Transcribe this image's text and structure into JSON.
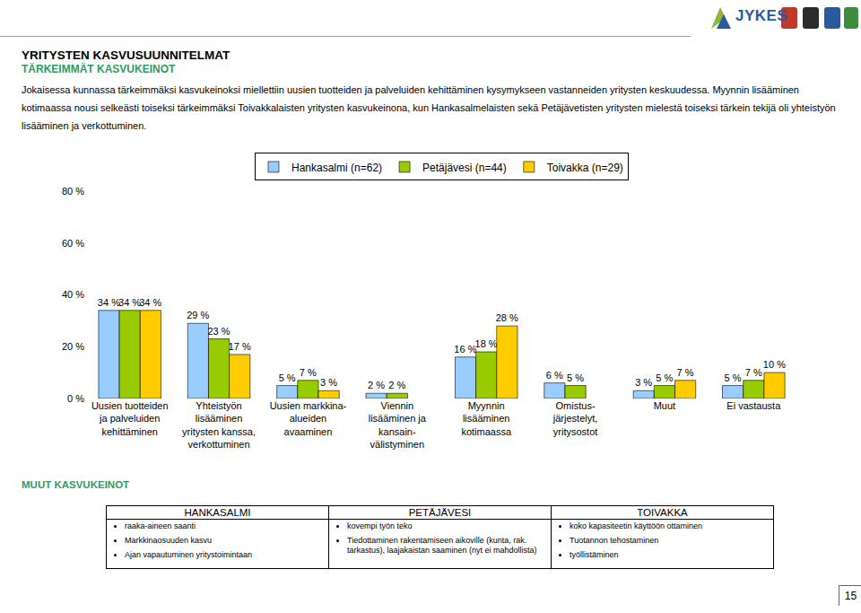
{
  "header": {
    "title": "YRITYSTEN KASVUSUUNNITELMAT",
    "subtitle": "TÄRKEIMMÄT KASVUKEINOT",
    "logo_text": "JYKES"
  },
  "intro": "Jokaisessa kunnassa tärkeimmäksi kasvukeinoksi miellettiin uusien tuotteiden ja palveluiden kehittäminen kysymykseen vastanneiden yritysten keskuudessa. Myynnin lisääminen kotimaassa nousi selkeästi toiseksi tärkeimmäksi Toivakkalaisten yritysten kasvukeinona, kun Hankasalmelaisten sekä Petäjävetisten yritysten mielestä toiseksi tärkein tekijä oli yhteistyön lisääminen ja verkottuminen.",
  "chart_data": {
    "type": "bar",
    "categories": [
      "Uusien tuotteiden\nja palveluiden\nkehittäminen",
      "Yhteistyön\nlisääminen\nyritysten kanssa,\nverkottuminen",
      "Uusien markkina-\nalueiden\navaaminen",
      "Viennin\nlisääminen ja\nkansain-\nvälistyminen",
      "Myynnin\nlisääminen\nkotimaassa",
      "Omistus-\njärjestelyt,\nyritysostot",
      "Muut",
      "Ei vastausta"
    ],
    "series": [
      {
        "name": "Hankasalmi (n=62)",
        "color": "#99ccff",
        "values": [
          34,
          29,
          5,
          2,
          16,
          6,
          3,
          5
        ],
        "value_labels": [
          "34 %",
          "29 %",
          "5 %",
          "2 %",
          "16 %",
          "6 %",
          "3 %",
          "5 %"
        ]
      },
      {
        "name": "Petäjävesi (n=44)",
        "color": "#99cc00",
        "values": [
          34,
          23,
          7,
          2,
          18,
          5,
          5,
          7
        ],
        "value_labels": [
          "34 %",
          "23 %",
          "7 %",
          "2 %",
          "18 %",
          "5 %",
          "5 %",
          "7 %"
        ]
      },
      {
        "name": "Toivakka (n=29)",
        "color": "#ffcc00",
        "values": [
          34,
          17,
          3,
          null,
          28,
          null,
          7,
          10
        ],
        "value_labels": [
          "34 %",
          "17 %",
          "3 %",
          null,
          "28 %",
          null,
          "7 %",
          "10 %"
        ]
      }
    ],
    "ylim": [
      0,
      80
    ],
    "yticks": [
      {
        "value": 0,
        "label": "0 %"
      },
      {
        "value": 20,
        "label": "20 %"
      },
      {
        "value": 40,
        "label": "40 %"
      },
      {
        "value": 60,
        "label": "60 %"
      },
      {
        "value": 80,
        "label": "80 %"
      }
    ],
    "grid": false,
    "data_labels": true,
    "legend": "top"
  },
  "other_methods": {
    "title": "MUUT KASVUKEINOT",
    "columns": [
      {
        "name": "HANKASALMI",
        "items": [
          "raaka-aineen saanti",
          "Markkinaosuuden kasvu",
          "Ajan vapautuminen yritystoimintaan"
        ]
      },
      {
        "name": "PETÄJÄVESI",
        "items": [
          "kovempi työn teko",
          "Tiedottaminen rakentamiseen aikoville (kunta, rak. tarkastus), laajakaistan saaminen (nyt ei mahdollista)"
        ]
      },
      {
        "name": "TOIVAKKA",
        "items": [
          "koko kapasiteetin käyttöön ottaminen",
          "Tuotannon tehostaminen",
          "työllistäminen"
        ]
      }
    ]
  },
  "page_number": "15"
}
